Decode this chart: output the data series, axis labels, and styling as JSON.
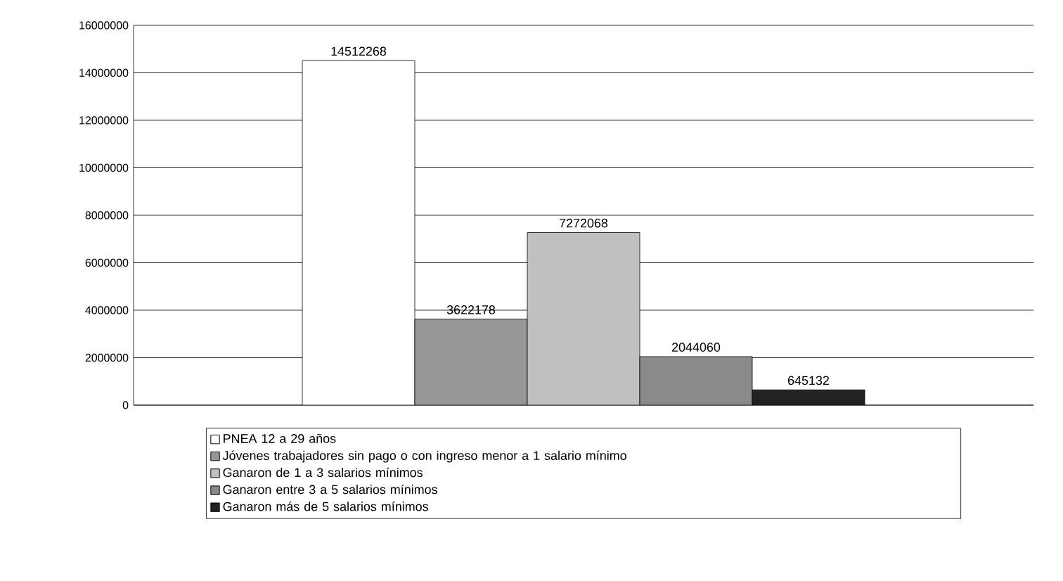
{
  "chart_data": {
    "type": "bar",
    "categories": [
      null
    ],
    "series": [
      {
        "name": "PNEA 12 a 29 años",
        "color": "#ffffff",
        "values": [
          14512268
        ]
      },
      {
        "name": "Jóvenes trabajadores sin pago o con ingreso menor a 1 salario mínimo",
        "color": "#969696",
        "values": [
          3622178
        ]
      },
      {
        "name": "Ganaron de 1 a 3 salarios mínimos",
        "color": "#c0c0c0",
        "values": [
          7272068
        ]
      },
      {
        "name": "Ganaron entre 3 a 5 salarios mínimos",
        "color": "#8a8a8a",
        "values": [
          2044060
        ]
      },
      {
        "name": "Ganaron más de 5 salarios mínimos",
        "color": "#222222",
        "values": [
          645132
        ]
      }
    ],
    "ylim": [
      0,
      16000000
    ],
    "yticks": [
      0,
      2000000,
      4000000,
      6000000,
      8000000,
      10000000,
      12000000,
      14000000,
      16000000
    ],
    "grid": "y",
    "legend": "bottom",
    "tick_labels": "y",
    "data_labels": true
  }
}
